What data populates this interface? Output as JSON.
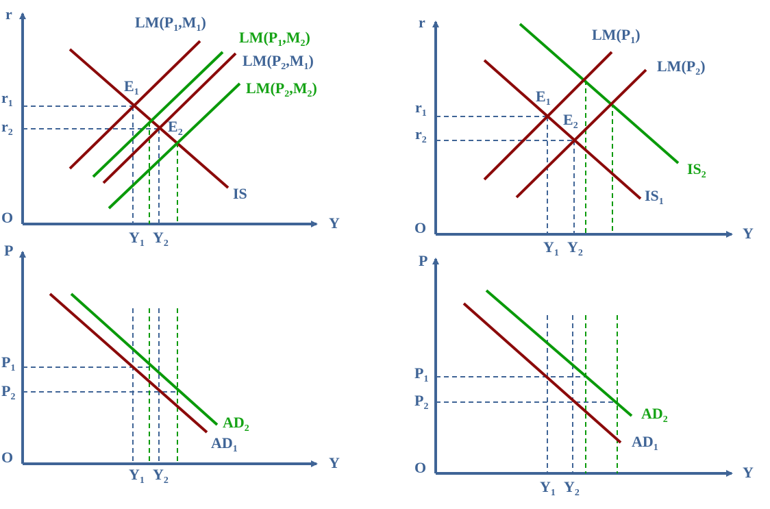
{
  "colors": {
    "axis": "#3f6496",
    "curve_red": "#8b0a0a",
    "curve_green": "#0a9a0a",
    "label_blue": "#3f6496",
    "label_green": "#16a316"
  },
  "panels": {
    "top_left": {
      "y_axis": "r",
      "x_axis": "Y",
      "origin": "O",
      "r1": {
        "base": "r",
        "sub": "1"
      },
      "r2": {
        "base": "r",
        "sub": "2"
      },
      "y1": {
        "base": "Y",
        "sub": "1"
      },
      "y2": {
        "base": "Y",
        "sub": "2"
      },
      "e1": {
        "base": "E",
        "sub": "1"
      },
      "e2": {
        "base": "E",
        "sub": "2"
      },
      "is": "IS",
      "lm_p1_m1": {
        "pre": "LM(P",
        "s1": "1",
        "mid": ",M",
        "s2": "1",
        "post": ")"
      },
      "lm_p1_m2": {
        "pre": "LM(P",
        "s1": "1",
        "mid": ",M",
        "s2": "2",
        "post": ")"
      },
      "lm_p2_m1": {
        "pre": "LM(P",
        "s1": "2",
        "mid": ",M",
        "s2": "1",
        "post": ")"
      },
      "lm_p2_m2": {
        "pre": "LM(P",
        "s1": "2",
        "mid": ",M",
        "s2": "2",
        "post": ")"
      }
    },
    "top_right": {
      "y_axis": "r",
      "x_axis": "Y",
      "origin": "O",
      "r1": {
        "base": "r",
        "sub": "1"
      },
      "r2": {
        "base": "r",
        "sub": "2"
      },
      "y1": {
        "base": "Y",
        "sub": "1"
      },
      "y2": {
        "base": "Y",
        "sub": "2"
      },
      "e1": {
        "base": "E",
        "sub": "1"
      },
      "e2": {
        "base": "E",
        "sub": "2"
      },
      "lm_p1": {
        "pre": "LM(P",
        "sub": "1",
        "post": ")"
      },
      "lm_p2": {
        "pre": "LM(P",
        "sub": "2",
        "post": ")"
      },
      "is1": {
        "base": "IS",
        "sub": "1"
      },
      "is2": {
        "base": "IS",
        "sub": "2"
      }
    },
    "bottom_left": {
      "y_axis": "P",
      "x_axis": "Y",
      "origin": "O",
      "p1": {
        "base": "P",
        "sub": "1"
      },
      "p2": {
        "base": "P",
        "sub": "2"
      },
      "y1": {
        "base": "Y",
        "sub": "1"
      },
      "y2": {
        "base": "Y",
        "sub": "2"
      },
      "ad1": {
        "base": "AD",
        "sub": "1"
      },
      "ad2": {
        "base": "AD",
        "sub": "2"
      }
    },
    "bottom_right": {
      "y_axis": "P",
      "x_axis": "Y",
      "origin": "O",
      "p1": {
        "base": "P",
        "sub": "1"
      },
      "p2": {
        "base": "P",
        "sub": "2"
      },
      "y1": {
        "base": "Y",
        "sub": "1"
      },
      "y2": {
        "base": "Y",
        "sub": "2"
      },
      "ad1": {
        "base": "AD",
        "sub": "1"
      },
      "ad2": {
        "base": "AD",
        "sub": "2"
      }
    }
  }
}
